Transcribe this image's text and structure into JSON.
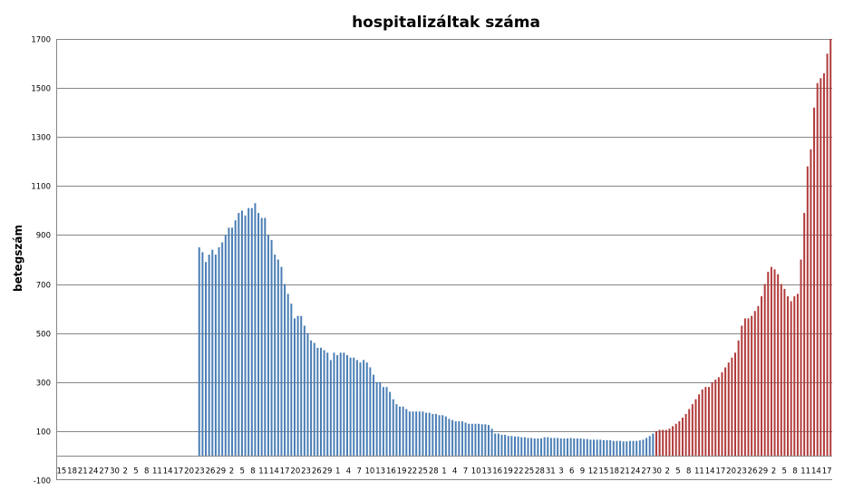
{
  "chart_data": {
    "type": "bar",
    "title": "hospitalizáltak száma",
    "xlabel": "",
    "ylabel": "betegszám",
    "ylim": [
      -100,
      1700
    ],
    "yticks": [
      -100,
      100,
      300,
      500,
      700,
      900,
      1100,
      1300,
      1500,
      1700
    ],
    "grid": true,
    "legend": "none",
    "colors": {
      "first_wave": "#4a7eb5",
      "second_wave": "#b23a3a",
      "grid": "#868686",
      "axis": "#868686"
    },
    "x_tick_labels": [
      "15",
      "18",
      "21",
      "24",
      "27",
      "30",
      "2",
      "5",
      "8",
      "11",
      "14",
      "17",
      "20",
      "23",
      "26",
      "29",
      "2",
      "5",
      "8",
      "11",
      "14",
      "17",
      "20",
      "23",
      "26",
      "29",
      "1",
      "4",
      "7",
      "10",
      "13",
      "16",
      "19",
      "22",
      "25",
      "28",
      "1",
      "4",
      "7",
      "10",
      "13",
      "16",
      "19",
      "22",
      "25",
      "28",
      "31",
      "3",
      "6",
      "9",
      "12",
      "15",
      "18",
      "21",
      "24",
      "27",
      "30",
      "2",
      "5",
      "8",
      "11",
      "14",
      "17",
      "20",
      "23",
      "26",
      "29",
      "2",
      "5",
      "8",
      "11",
      "14",
      "17"
    ],
    "series": [
      {
        "color": "#4a7eb5",
        "x_start_index": 43,
        "values": [
          850,
          830,
          790,
          820,
          840,
          820,
          850,
          870,
          900,
          930,
          930,
          960,
          990,
          1000,
          980,
          1010,
          1010,
          1030,
          990,
          970,
          970,
          900,
          880,
          820,
          800,
          770,
          700,
          660,
          620,
          560,
          570,
          570,
          530,
          500,
          470,
          460,
          440,
          440,
          430,
          420,
          390,
          420,
          410,
          420,
          420,
          410,
          400,
          400,
          390,
          380,
          390,
          380,
          360,
          330,
          300,
          300,
          280,
          280,
          260,
          230,
          210,
          200,
          200,
          190,
          180,
          180,
          180,
          180,
          180,
          175,
          175,
          170,
          170,
          165,
          165,
          160,
          150,
          145,
          140,
          140,
          140,
          135,
          130,
          130,
          130,
          130,
          128,
          128,
          125,
          110,
          90,
          90,
          85,
          85,
          80,
          80,
          78,
          78,
          75,
          75,
          72,
          72,
          70,
          70,
          70,
          75,
          75,
          72,
          72,
          72,
          70,
          70,
          70,
          72,
          70,
          70,
          70,
          68,
          68,
          65,
          65,
          65,
          65,
          63,
          63,
          63,
          60,
          60,
          60,
          58,
          58,
          60,
          60,
          60,
          62,
          65,
          72,
          80,
          90,
          95,
          100
        ]
      },
      {
        "color": "#b23a3a",
        "x_start_index": 182,
        "values": [
          100,
          105,
          105,
          105,
          110,
          120,
          130,
          140,
          155,
          170,
          190,
          210,
          230,
          250,
          270,
          280,
          280,
          300,
          310,
          320,
          340,
          360,
          380,
          400,
          420,
          470,
          530,
          560,
          560,
          570,
          590,
          610,
          650,
          700,
          750,
          770,
          760,
          740,
          700,
          680,
          650,
          630,
          650,
          660,
          800,
          990,
          1180,
          1250,
          1420,
          1520,
          1540,
          1560,
          1640,
          1700
        ]
      }
    ]
  }
}
